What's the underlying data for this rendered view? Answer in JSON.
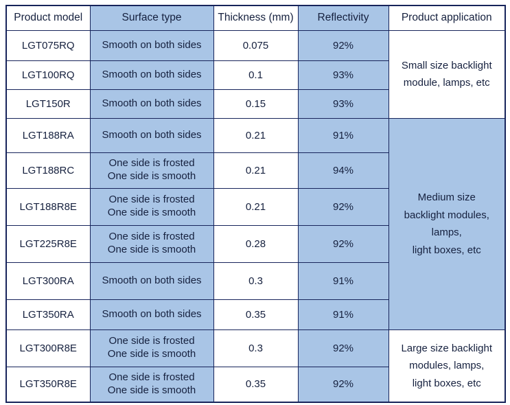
{
  "chart_data": {
    "type": "table",
    "title": "",
    "headers": {
      "model": "Product model",
      "surface": "Surface type",
      "thickness": "Thickness (mm)",
      "reflectivity": "Reflectivity",
      "application": "Product application"
    },
    "rows": [
      {
        "model": "LGT075RQ",
        "surface": "Smooth on both sides",
        "thickness": "0.075",
        "reflectivity": "92%"
      },
      {
        "model": "LGT100RQ",
        "surface": "Smooth on both sides",
        "thickness": "0.1",
        "reflectivity": "93%"
      },
      {
        "model": "LGT150R",
        "surface": "Smooth on both sides",
        "thickness": "0.15",
        "reflectivity": "93%"
      },
      {
        "model": "LGT188RA",
        "surface": "Smooth on both sides",
        "thickness": "0.21",
        "reflectivity": "91%"
      },
      {
        "model": "LGT188RC",
        "surface": "One side is frosted\nOne side is smooth",
        "thickness": "0.21",
        "reflectivity": "94%"
      },
      {
        "model": "LGT188R8E",
        "surface": "One side is frosted\nOne side is smooth",
        "thickness": "0.21",
        "reflectivity": "92%"
      },
      {
        "model": "LGT225R8E",
        "surface": "One side is frosted\nOne side is smooth",
        "thickness": "0.28",
        "reflectivity": "92%"
      },
      {
        "model": "LGT300RA",
        "surface": "Smooth on both sides",
        "thickness": "0.3",
        "reflectivity": "91%"
      },
      {
        "model": "LGT350RA",
        "surface": "Smooth on both sides",
        "thickness": "0.35",
        "reflectivity": "91%"
      },
      {
        "model": "LGT300R8E",
        "surface": "One side is frosted\nOne side is smooth",
        "thickness": "0.3",
        "reflectivity": "92%"
      },
      {
        "model": "LGT350R8E",
        "surface": "One side is frosted\nOne side is smooth",
        "thickness": "0.35",
        "reflectivity": "92%"
      }
    ],
    "applications": [
      {
        "label": "Small size backlight\nmodule, lamps, etc",
        "span": 3
      },
      {
        "label": "Medium size\nbacklight modules,\nlamps,\nlight boxes, etc",
        "span": 6
      },
      {
        "label": "Large size backlight\nmodules, lamps,\nlight boxes, etc",
        "span": 2
      }
    ]
  },
  "colors": {
    "highlight": "#a9c5e6",
    "border": "#16235a",
    "text": "#15203e"
  }
}
